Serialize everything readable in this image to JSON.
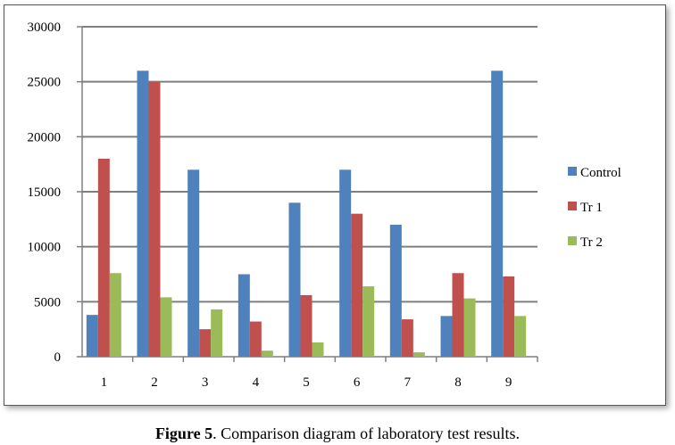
{
  "chart_data": {
    "type": "bar",
    "categories": [
      "1",
      "2",
      "3",
      "4",
      "5",
      "6",
      "7",
      "8",
      "9"
    ],
    "series": [
      {
        "name": "Control",
        "color": "#4f81bd",
        "values": [
          3800,
          26000,
          17000,
          7500,
          14000,
          17000,
          12000,
          3700,
          26000
        ]
      },
      {
        "name": "Tr 1",
        "color": "#c0504d",
        "values": [
          18000,
          25000,
          2500,
          3200,
          5600,
          13000,
          3400,
          7600,
          7300
        ]
      },
      {
        "name": "Tr 2",
        "color": "#9bbb59",
        "values": [
          7600,
          5400,
          4300,
          550,
          1300,
          6400,
          400,
          5300,
          3700
        ]
      }
    ],
    "yticks": [
      "0",
      "5000",
      "10000",
      "15000",
      "20000",
      "25000",
      "30000"
    ],
    "ylim": [
      0,
      30000
    ],
    "grid": true,
    "legend_position": "right",
    "title": "",
    "xlabel": "",
    "ylabel": ""
  },
  "caption": {
    "label": "Figure 5",
    "text": ". Comparison diagram of laboratory test results."
  }
}
